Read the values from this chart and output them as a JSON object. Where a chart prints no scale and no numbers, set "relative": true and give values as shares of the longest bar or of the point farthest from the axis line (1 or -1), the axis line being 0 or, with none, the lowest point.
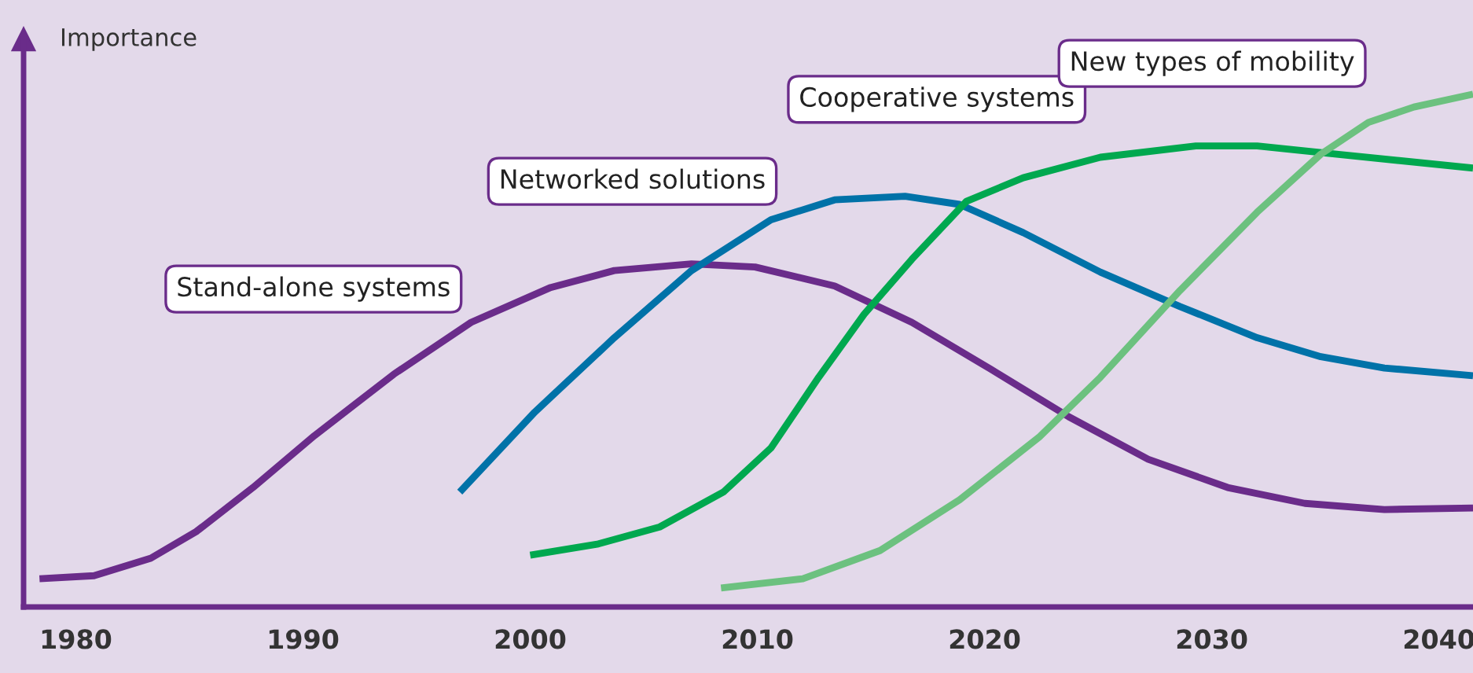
{
  "chart_data": {
    "type": "line",
    "relative": true,
    "ylabel": "Importance",
    "xlim": [
      1977.7,
      2041.5
    ],
    "xticks": [
      1980,
      1990,
      2000,
      2010,
      2020,
      2030,
      2040
    ],
    "grid": false,
    "legend": false,
    "marker": "none",
    "line_style": "solid",
    "series": [
      {
        "name": "Stand-alone systems",
        "color": "#6a2c8a",
        "x": [
          1978.4,
          1980.8,
          1983.3,
          1985.3,
          1987.8,
          1990.5,
          1994.0,
          1997.4,
          2000.9,
          2003.7,
          2007.1,
          2009.9,
          2013.4,
          2016.8,
          2020.3,
          2023.7,
          2027.2,
          2030.7,
          2034.1,
          2037.6,
          2041.5
        ],
        "values": [
          0.055,
          0.061,
          0.095,
          0.147,
          0.233,
          0.334,
          0.454,
          0.555,
          0.623,
          0.656,
          0.669,
          0.663,
          0.626,
          0.555,
          0.463,
          0.371,
          0.288,
          0.233,
          0.202,
          0.19,
          0.193
        ]
      },
      {
        "name": "Networked solutions",
        "color": "#0072a8",
        "x": [
          1996.9,
          2000.2,
          2003.7,
          2007.1,
          2010.6,
          2013.4,
          2016.5,
          2018.9,
          2021.7,
          2025.1,
          2028.6,
          2032.0,
          2034.8,
          2037.6,
          2041.5
        ],
        "values": [
          0.224,
          0.38,
          0.525,
          0.656,
          0.755,
          0.794,
          0.801,
          0.785,
          0.73,
          0.653,
          0.586,
          0.525,
          0.488,
          0.466,
          0.451
        ]
      },
      {
        "name": "Cooperative systems",
        "color": "#00a84f",
        "x": [
          2000.0,
          2003.0,
          2005.7,
          2008.5,
          2010.6,
          2012.7,
          2014.7,
          2016.8,
          2019.2,
          2021.7,
          2025.1,
          2029.3,
          2032.0,
          2035.5,
          2041.5
        ],
        "values": [
          0.101,
          0.123,
          0.156,
          0.224,
          0.31,
          0.448,
          0.571,
          0.678,
          0.791,
          0.837,
          0.877,
          0.899,
          0.899,
          0.883,
          0.856
        ]
      },
      {
        "name": "New types of mobility",
        "color": "#6cc17f",
        "x": [
          2008.4,
          2012.0,
          2015.4,
          2018.9,
          2022.4,
          2025.1,
          2028.6,
          2032.0,
          2034.8,
          2036.9,
          2038.9,
          2041.5
        ],
        "values": [
          0.037,
          0.055,
          0.11,
          0.209,
          0.331,
          0.448,
          0.617,
          0.77,
          0.883,
          0.945,
          0.975,
          1.0
        ]
      }
    ]
  }
}
